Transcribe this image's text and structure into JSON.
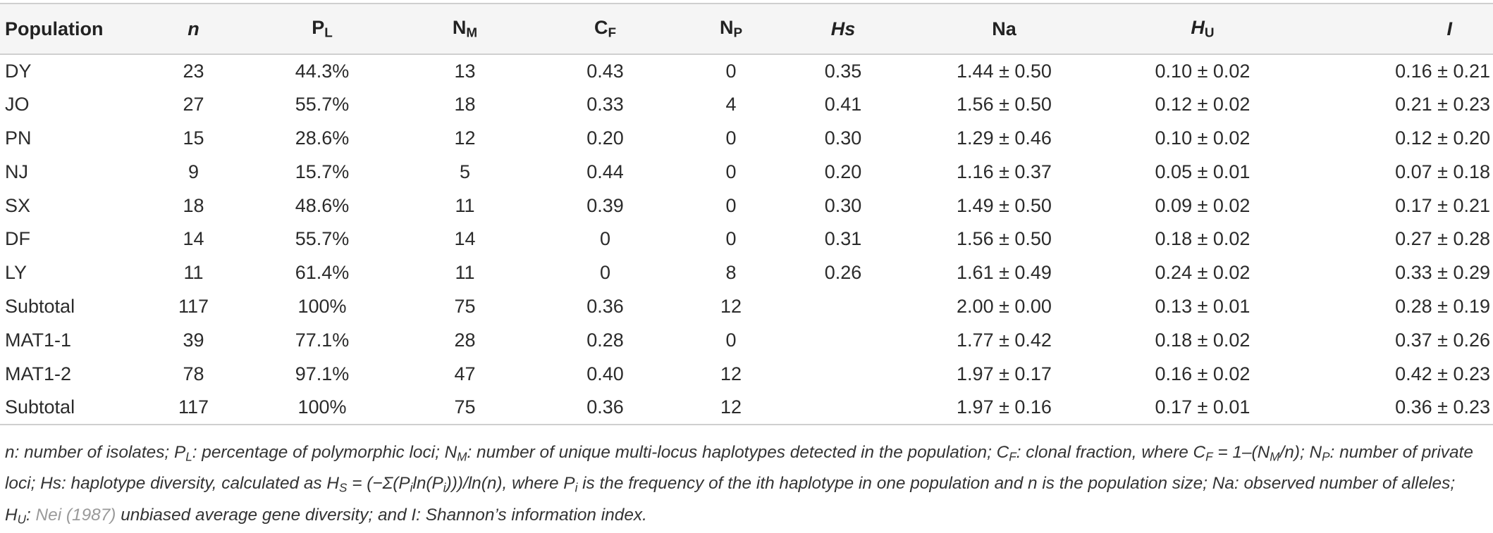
{
  "table": {
    "headers": [
      {
        "main": "Population",
        "sub": ""
      },
      {
        "main": "n",
        "sub": ""
      },
      {
        "main": "P",
        "sub": "L"
      },
      {
        "main": "N",
        "sub": "M"
      },
      {
        "main": "C",
        "sub": "F"
      },
      {
        "main": "N",
        "sub": "P"
      },
      {
        "main": "Hs",
        "sub": ""
      },
      {
        "main": "Na",
        "sub": ""
      },
      {
        "main": "H",
        "sub": "U"
      },
      {
        "main": "I",
        "sub": ""
      }
    ],
    "rows": [
      [
        "DY",
        "23",
        "44.3%",
        "13",
        "0.43",
        "0",
        "0.35",
        "1.44 ± 0.50",
        "0.10 ± 0.02",
        "0.16 ± 0.21"
      ],
      [
        "JO",
        "27",
        "55.7%",
        "18",
        "0.33",
        "4",
        "0.41",
        "1.56 ± 0.50",
        "0.12 ± 0.02",
        "0.21 ± 0.23"
      ],
      [
        "PN",
        "15",
        "28.6%",
        "12",
        "0.20",
        "0",
        "0.30",
        "1.29 ± 0.46",
        "0.10 ± 0.02",
        "0.12 ± 0.20"
      ],
      [
        "NJ",
        "9",
        "15.7%",
        "5",
        "0.44",
        "0",
        "0.20",
        "1.16 ± 0.37",
        "0.05 ± 0.01",
        "0.07 ± 0.18"
      ],
      [
        "SX",
        "18",
        "48.6%",
        "11",
        "0.39",
        "0",
        "0.30",
        "1.49 ± 0.50",
        "0.09 ± 0.02",
        "0.17 ± 0.21"
      ],
      [
        "DF",
        "14",
        "55.7%",
        "14",
        "0",
        "0",
        "0.31",
        "1.56 ± 0.50",
        "0.18 ± 0.02",
        "0.27 ± 0.28"
      ],
      [
        "LY",
        "11",
        "61.4%",
        "11",
        "0",
        "8",
        "0.26",
        "1.61 ± 0.49",
        "0.24 ± 0.02",
        "0.33 ± 0.29"
      ],
      [
        "Subtotal",
        "117",
        "100%",
        "75",
        "0.36",
        "12",
        "",
        "2.00 ± 0.00",
        "0.13 ± 0.01",
        "0.28 ± 0.19"
      ],
      [
        "MAT1-1",
        "39",
        "77.1%",
        "28",
        "0.28",
        "0",
        "",
        "1.77 ± 0.42",
        "0.18 ± 0.02",
        "0.37 ± 0.26"
      ],
      [
        "MAT1-2",
        "78",
        "97.1%",
        "47",
        "0.40",
        "12",
        "",
        "1.97 ± 0.17",
        "0.16 ± 0.02",
        "0.42 ± 0.23"
      ],
      [
        "Subtotal",
        "117",
        "100%",
        "75",
        "0.36",
        "12",
        "",
        "1.97 ± 0.16",
        "0.17 ± 0.01",
        "0.36 ± 0.23"
      ]
    ]
  },
  "footnote": {
    "t1": "n: number of isolates; P",
    "s1": "L",
    "t2": ": percentage of polymorphic loci; N",
    "s2": "M",
    "t3": ": number of unique multi-locus haplotypes detected in the population; C",
    "s3": "F",
    "t4": ": clonal fraction, where C",
    "s4": "F",
    "t5": " = 1–(N",
    "s5": "M",
    "t6": "/n); N",
    "s6": "P",
    "t7": ": number of private loci; Hs: haplotype diversity, calculated as H",
    "s7": "S",
    "t8": " = (−Σ(P",
    "s8": "i",
    "t9": "ln(P",
    "s9": "i",
    "t10": ")))/ln(n), where P",
    "s10": "i",
    "t11": " is the frequency of the ith haplotype in one population and n is the population size; Na: observed number of alleles; H",
    "s11": "U",
    "t12": ": ",
    "ref": "Nei (1987)",
    "t13": " unbiased average gene diversity; and I: Shannon’s information index."
  }
}
